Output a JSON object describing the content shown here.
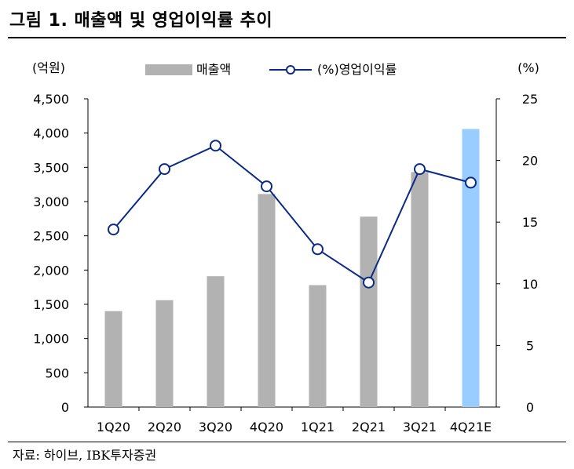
{
  "figure": {
    "title": "그림 1. 매출액 및 영업이익률 추이",
    "source": "자료: 하이브, IBK투자증권"
  },
  "chart_data": {
    "type": "bar",
    "categories": [
      "1Q20",
      "2Q20",
      "3Q20",
      "4Q20",
      "1Q21",
      "2Q21",
      "3Q21",
      "4Q21E"
    ],
    "left_axis": {
      "label": "(억원)",
      "ylim": [
        0,
        4500
      ],
      "ticks": [
        "4,500",
        "4,000",
        "3,500",
        "3,000",
        "2,500",
        "2,000",
        "1,500",
        "1,000",
        "500",
        "0"
      ]
    },
    "right_axis": {
      "label": "(%)",
      "ylim": [
        0,
        25
      ],
      "ticks": [
        "25",
        "20",
        "15",
        "10",
        "5",
        "0"
      ]
    },
    "series": [
      {
        "name": "매출액",
        "type": "bar",
        "axis": "left",
        "values": [
          1400,
          1560,
          1910,
          3110,
          1780,
          2780,
          3430,
          4060
        ]
      },
      {
        "name": "(%)영업이익률",
        "type": "line",
        "axis": "right",
        "values": [
          14.4,
          19.3,
          21.2,
          17.9,
          12.8,
          10.1,
          19.3,
          18.2
        ]
      }
    ],
    "grid": false,
    "legend_position": "top"
  },
  "colors": {
    "bar": "#b2b2b2",
    "bar_highlight": "#99ccff",
    "line": "#0a2a86",
    "axis": "#000000"
  }
}
